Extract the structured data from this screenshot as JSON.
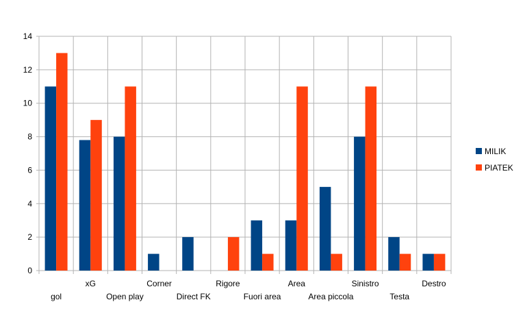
{
  "chart_data": {
    "type": "bar",
    "categories": [
      "gol",
      "xG",
      "Open play",
      "Corner",
      "Direct FK",
      "Rigore",
      "Fuori area",
      "Area",
      "Area piccola",
      "Sinistro",
      "Testa",
      "Destro"
    ],
    "series": [
      {
        "name": "MILIK",
        "color": "#004586",
        "values": [
          11,
          7.8,
          8,
          1,
          2,
          0,
          3,
          3,
          5,
          8,
          2,
          1
        ]
      },
      {
        "name": "PIATEK",
        "color": "#ff420e",
        "values": [
          13,
          9,
          11,
          0,
          0,
          2,
          1,
          11,
          1,
          11,
          1,
          1
        ]
      }
    ],
    "ylim": [
      0,
      14
    ],
    "yticks": [
      0,
      2,
      4,
      6,
      8,
      10,
      12,
      14
    ],
    "grid": true,
    "legend_position": "right"
  }
}
